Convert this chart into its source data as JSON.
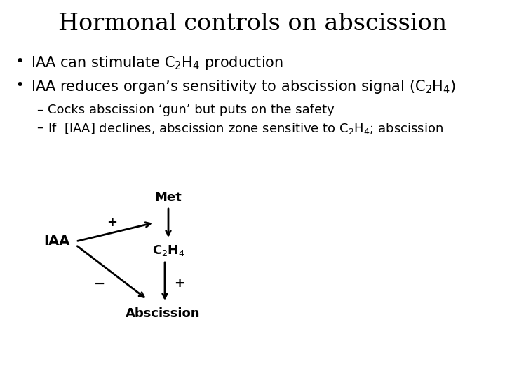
{
  "title": "Hormonal controls on abscission",
  "title_fontsize": 24,
  "background_color": "#ffffff",
  "text_color": "#000000",
  "fontsize_body": 15,
  "fontsize_sub": 13,
  "fontsize_diagram": 13,
  "bullet1": "IAA can stimulate C$_2$H$_4$ production",
  "bullet2": "IAA reduces organ’s sensitivity to abscission signal (C$_2$H$_4$)",
  "sub1": "Cocks abscission ‘gun’ but puts on the safety",
  "sub2": "If  [IAA] declines, abscission zone sensitive to C$_2$H$_4$; abscission",
  "diagram_IAA": "IAA",
  "diagram_Met": "Met",
  "diagram_C2H4": "C$_2$H$_4$",
  "diagram_Abscission": "Abscission",
  "diagram_plus1": "+",
  "diagram_minus": "−",
  "diagram_plus2": "+"
}
